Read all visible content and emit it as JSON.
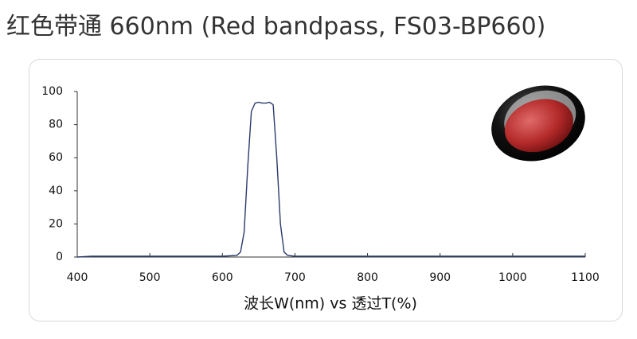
{
  "chart_data": {
    "type": "line",
    "title": "红色带通 660nm (Red bandpass, FS03-BP660)",
    "xlabel": "波长W(nm) vs 透过T(%)",
    "x": [
      400,
      420,
      500,
      600,
      620,
      625,
      630,
      635,
      640,
      645,
      650,
      655,
      660,
      665,
      670,
      675,
      680,
      685,
      690,
      700,
      800,
      900,
      1000,
      1100
    ],
    "values": [
      0,
      0.5,
      0.5,
      0.5,
      1,
      3,
      15,
      55,
      88,
      93,
      93.5,
      93,
      93,
      93.5,
      92,
      60,
      20,
      3,
      1,
      0.5,
      0.5,
      0.5,
      0.5,
      0.5
    ],
    "color": "#2b3a6b",
    "xlim": [
      400,
      1100
    ],
    "xticks": [
      400,
      500,
      600,
      700,
      800,
      900,
      1000,
      1100
    ],
    "ylim": [
      0,
      100
    ],
    "yticks": [
      0,
      20,
      40,
      60,
      80,
      100
    ]
  }
}
